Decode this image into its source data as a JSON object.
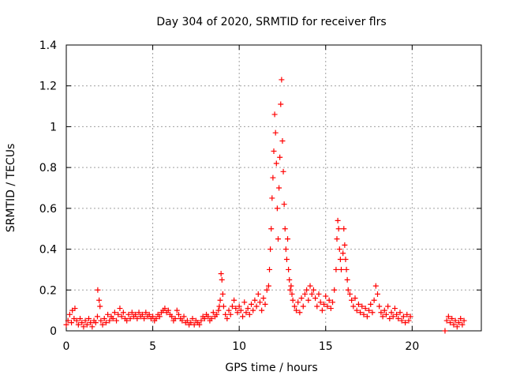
{
  "chart_data": {
    "type": "scatter",
    "title": "Day 304 of 2020, SRMTID for receiver flrs",
    "xlabel": "GPS time / hours",
    "ylabel": "SRMTID / TECUs",
    "xlim": [
      0,
      24
    ],
    "ylim": [
      0,
      1.4
    ],
    "xticks": [
      "0",
      "5",
      "10",
      "15",
      "20"
    ],
    "yticks": [
      "0",
      "0.2",
      "0.4",
      "0.6",
      "0.8",
      "1",
      "1.2",
      "1.4"
    ],
    "grid": true,
    "marker": "+",
    "color": "#ff0000",
    "series": [
      {
        "name": "SRMTID",
        "points": [
          [
            0.0,
            0.03
          ],
          [
            0.1,
            0.05
          ],
          [
            0.2,
            0.08
          ],
          [
            0.3,
            0.04
          ],
          [
            0.35,
            0.1
          ],
          [
            0.45,
            0.06
          ],
          [
            0.5,
            0.11
          ],
          [
            0.6,
            0.05
          ],
          [
            0.7,
            0.03
          ],
          [
            0.8,
            0.06
          ],
          [
            0.9,
            0.04
          ],
          [
            1.0,
            0.02
          ],
          [
            1.1,
            0.05
          ],
          [
            1.2,
            0.03
          ],
          [
            1.3,
            0.06
          ],
          [
            1.4,
            0.04
          ],
          [
            1.5,
            0.02
          ],
          [
            1.6,
            0.05
          ],
          [
            1.7,
            0.04
          ],
          [
            1.8,
            0.07
          ],
          [
            1.82,
            0.2
          ],
          [
            1.9,
            0.15
          ],
          [
            1.95,
            0.12
          ],
          [
            2.0,
            0.05
          ],
          [
            2.1,
            0.03
          ],
          [
            2.2,
            0.06
          ],
          [
            2.3,
            0.04
          ],
          [
            2.4,
            0.08
          ],
          [
            2.5,
            0.05
          ],
          [
            2.6,
            0.07
          ],
          [
            2.7,
            0.06
          ],
          [
            2.8,
            0.09
          ],
          [
            2.9,
            0.05
          ],
          [
            3.0,
            0.08
          ],
          [
            3.1,
            0.11
          ],
          [
            3.2,
            0.07
          ],
          [
            3.3,
            0.09
          ],
          [
            3.4,
            0.06
          ],
          [
            3.5,
            0.05
          ],
          [
            3.6,
            0.08
          ],
          [
            3.7,
            0.06
          ],
          [
            3.8,
            0.09
          ],
          [
            3.9,
            0.07
          ],
          [
            4.0,
            0.08
          ],
          [
            4.1,
            0.06
          ],
          [
            4.2,
            0.09
          ],
          [
            4.3,
            0.07
          ],
          [
            4.4,
            0.08
          ],
          [
            4.5,
            0.06
          ],
          [
            4.6,
            0.09
          ],
          [
            4.7,
            0.07
          ],
          [
            4.8,
            0.08
          ],
          [
            4.9,
            0.06
          ],
          [
            5.0,
            0.07
          ],
          [
            5.1,
            0.05
          ],
          [
            5.2,
            0.06
          ],
          [
            5.3,
            0.08
          ],
          [
            5.4,
            0.07
          ],
          [
            5.5,
            0.09
          ],
          [
            5.6,
            0.1
          ],
          [
            5.7,
            0.11
          ],
          [
            5.8,
            0.09
          ],
          [
            5.9,
            0.1
          ],
          [
            6.0,
            0.08
          ],
          [
            6.1,
            0.07
          ],
          [
            6.2,
            0.05
          ],
          [
            6.3,
            0.06
          ],
          [
            6.4,
            0.1
          ],
          [
            6.5,
            0.08
          ],
          [
            6.6,
            0.06
          ],
          [
            6.7,
            0.05
          ],
          [
            6.8,
            0.07
          ],
          [
            6.9,
            0.04
          ],
          [
            7.0,
            0.05
          ],
          [
            7.1,
            0.03
          ],
          [
            7.2,
            0.04
          ],
          [
            7.3,
            0.06
          ],
          [
            7.4,
            0.03
          ],
          [
            7.5,
            0.05
          ],
          [
            7.6,
            0.04
          ],
          [
            7.7,
            0.03
          ],
          [
            7.8,
            0.05
          ],
          [
            7.9,
            0.07
          ],
          [
            8.0,
            0.06
          ],
          [
            8.1,
            0.08
          ],
          [
            8.2,
            0.07
          ],
          [
            8.3,
            0.05
          ],
          [
            8.4,
            0.06
          ],
          [
            8.5,
            0.09
          ],
          [
            8.6,
            0.07
          ],
          [
            8.7,
            0.08
          ],
          [
            8.8,
            0.1
          ],
          [
            8.85,
            0.12
          ],
          [
            8.9,
            0.15
          ],
          [
            8.95,
            0.28
          ],
          [
            9.0,
            0.25
          ],
          [
            9.05,
            0.18
          ],
          [
            9.1,
            0.12
          ],
          [
            9.2,
            0.08
          ],
          [
            9.3,
            0.06
          ],
          [
            9.4,
            0.1
          ],
          [
            9.5,
            0.08
          ],
          [
            9.6,
            0.12
          ],
          [
            9.7,
            0.15
          ],
          [
            9.8,
            0.11
          ],
          [
            9.9,
            0.09
          ],
          [
            10.0,
            0.12
          ],
          [
            10.1,
            0.1
          ],
          [
            10.2,
            0.07
          ],
          [
            10.3,
            0.14
          ],
          [
            10.4,
            0.09
          ],
          [
            10.5,
            0.11
          ],
          [
            10.6,
            0.08
          ],
          [
            10.7,
            0.13
          ],
          [
            10.8,
            0.1
          ],
          [
            10.9,
            0.15
          ],
          [
            11.0,
            0.12
          ],
          [
            11.1,
            0.18
          ],
          [
            11.2,
            0.14
          ],
          [
            11.3,
            0.1
          ],
          [
            11.4,
            0.16
          ],
          [
            11.5,
            0.13
          ],
          [
            11.6,
            0.2
          ],
          [
            11.7,
            0.22
          ],
          [
            11.75,
            0.3
          ],
          [
            11.8,
            0.4
          ],
          [
            11.85,
            0.5
          ],
          [
            11.9,
            0.65
          ],
          [
            11.95,
            0.75
          ],
          [
            12.0,
            0.88
          ],
          [
            12.05,
            1.06
          ],
          [
            12.1,
            0.97
          ],
          [
            12.15,
            0.82
          ],
          [
            12.2,
            0.6
          ],
          [
            12.25,
            0.45
          ],
          [
            12.3,
            0.7
          ],
          [
            12.35,
            0.85
          ],
          [
            12.4,
            1.11
          ],
          [
            12.45,
            1.23
          ],
          [
            12.5,
            0.93
          ],
          [
            12.55,
            0.78
          ],
          [
            12.6,
            0.62
          ],
          [
            12.65,
            0.5
          ],
          [
            12.7,
            0.4
          ],
          [
            12.75,
            0.35
          ],
          [
            12.8,
            0.45
          ],
          [
            12.85,
            0.3
          ],
          [
            12.9,
            0.25
          ],
          [
            12.95,
            0.2
          ],
          [
            13.0,
            0.22
          ],
          [
            13.05,
            0.18
          ],
          [
            13.1,
            0.15
          ],
          [
            13.2,
            0.12
          ],
          [
            13.3,
            0.1
          ],
          [
            13.4,
            0.14
          ],
          [
            13.5,
            0.09
          ],
          [
            13.6,
            0.16
          ],
          [
            13.7,
            0.12
          ],
          [
            13.8,
            0.18
          ],
          [
            13.9,
            0.2
          ],
          [
            14.0,
            0.15
          ],
          [
            14.1,
            0.22
          ],
          [
            14.2,
            0.18
          ],
          [
            14.3,
            0.2
          ],
          [
            14.4,
            0.16
          ],
          [
            14.5,
            0.12
          ],
          [
            14.6,
            0.18
          ],
          [
            14.7,
            0.14
          ],
          [
            14.8,
            0.1
          ],
          [
            14.9,
            0.13
          ],
          [
            15.0,
            0.17
          ],
          [
            15.1,
            0.12
          ],
          [
            15.2,
            0.15
          ],
          [
            15.3,
            0.11
          ],
          [
            15.4,
            0.14
          ],
          [
            15.5,
            0.2
          ],
          [
            15.6,
            0.3
          ],
          [
            15.65,
            0.45
          ],
          [
            15.7,
            0.54
          ],
          [
            15.75,
            0.5
          ],
          [
            15.8,
            0.4
          ],
          [
            15.85,
            0.35
          ],
          [
            15.9,
            0.3
          ],
          [
            16.0,
            0.38
          ],
          [
            16.05,
            0.5
          ],
          [
            16.1,
            0.42
          ],
          [
            16.15,
            0.35
          ],
          [
            16.2,
            0.3
          ],
          [
            16.25,
            0.25
          ],
          [
            16.3,
            0.2
          ],
          [
            16.4,
            0.18
          ],
          [
            16.5,
            0.15
          ],
          [
            16.6,
            0.12
          ],
          [
            16.7,
            0.16
          ],
          [
            16.8,
            0.1
          ],
          [
            16.9,
            0.13
          ],
          [
            17.0,
            0.09
          ],
          [
            17.1,
            0.12
          ],
          [
            17.2,
            0.08
          ],
          [
            17.3,
            0.11
          ],
          [
            17.4,
            0.07
          ],
          [
            17.5,
            0.1
          ],
          [
            17.6,
            0.13
          ],
          [
            17.7,
            0.09
          ],
          [
            17.8,
            0.15
          ],
          [
            17.9,
            0.22
          ],
          [
            18.0,
            0.18
          ],
          [
            18.1,
            0.12
          ],
          [
            18.2,
            0.09
          ],
          [
            18.3,
            0.07
          ],
          [
            18.4,
            0.1
          ],
          [
            18.5,
            0.08
          ],
          [
            18.6,
            0.12
          ],
          [
            18.7,
            0.06
          ],
          [
            18.8,
            0.09
          ],
          [
            18.9,
            0.07
          ],
          [
            19.0,
            0.11
          ],
          [
            19.1,
            0.08
          ],
          [
            19.2,
            0.06
          ],
          [
            19.3,
            0.09
          ],
          [
            19.4,
            0.05
          ],
          [
            19.5,
            0.07
          ],
          [
            19.6,
            0.04
          ],
          [
            19.7,
            0.08
          ],
          [
            19.8,
            0.05
          ],
          [
            19.9,
            0.07
          ],
          [
            21.9,
            0.0
          ],
          [
            22.0,
            0.05
          ],
          [
            22.1,
            0.07
          ],
          [
            22.2,
            0.04
          ],
          [
            22.3,
            0.06
          ],
          [
            22.4,
            0.03
          ],
          [
            22.5,
            0.05
          ],
          [
            22.6,
            0.02
          ],
          [
            22.7,
            0.04
          ],
          [
            22.8,
            0.06
          ],
          [
            22.9,
            0.03
          ],
          [
            23.0,
            0.05
          ]
        ]
      }
    ]
  }
}
